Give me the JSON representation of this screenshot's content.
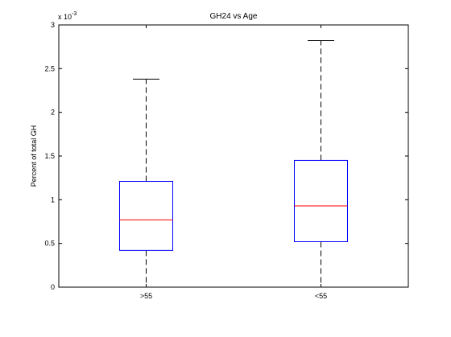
{
  "chart_data": {
    "type": "box",
    "title": "GH24 vs Age",
    "xlabel": "",
    "ylabel": "Percent of total GH",
    "y_exponent_label": "x 10",
    "y_exponent_power": "-3",
    "y_multiplier": 0.001,
    "ylim": [
      0,
      3
    ],
    "yticks": [
      0,
      0.5,
      1,
      1.5,
      2,
      2.5,
      3
    ],
    "ytick_labels": [
      "0",
      "0.5",
      "1",
      "1.5",
      "2",
      "2.5",
      "3"
    ],
    "categories": [
      ">55",
      "<55"
    ],
    "boxes": [
      {
        "category": ">55",
        "min": 0.0,
        "q1": 0.42,
        "median": 0.77,
        "q3": 1.21,
        "max": 2.38
      },
      {
        "category": "<55",
        "min": 0.0,
        "q1": 0.52,
        "median": 0.93,
        "q3": 1.45,
        "max": 2.82
      }
    ],
    "grid": false,
    "colors": {
      "box": "#0000ff",
      "median": "#ff0000",
      "whisker": "#000000",
      "axes": "#000000"
    }
  }
}
